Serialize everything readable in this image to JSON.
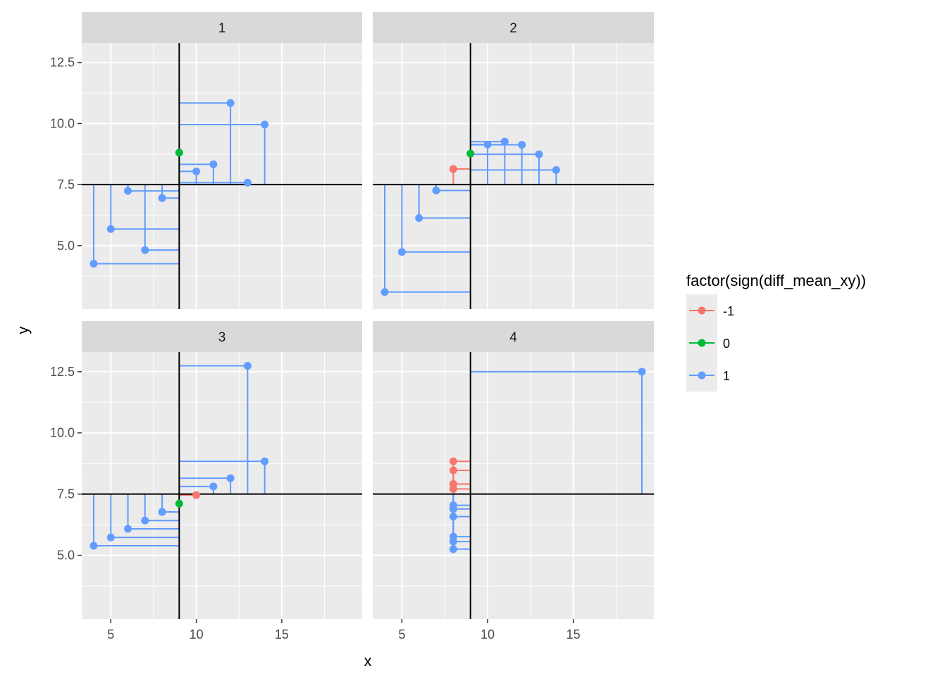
{
  "chart_data": {
    "type": "scatter",
    "facets": [
      "1",
      "2",
      "3",
      "4"
    ],
    "xlabel": "x",
    "ylabel": "y",
    "xlim": [
      3.3,
      19.7
    ],
    "ylim": [
      2.4,
      13.3
    ],
    "x_ticks": [
      5,
      10,
      15
    ],
    "x_tick_labels": [
      "5",
      "10",
      "15"
    ],
    "y_ticks": [
      5.0,
      7.5,
      10.0,
      12.5
    ],
    "y_tick_labels": [
      "5.0",
      "7.5",
      "10.0",
      "12.5"
    ],
    "mean_x": 9,
    "mean_y": 7.5,
    "grid": true,
    "legend": {
      "title": "factor(sign(diff_mean_xy))",
      "position": "right",
      "entries": [
        {
          "label": "-1",
          "color": "#F8766D"
        },
        {
          "label": "0",
          "color": "#00BA38"
        },
        {
          "label": "1",
          "color": "#619CFF"
        }
      ]
    },
    "panels": [
      {
        "facet": "1",
        "points": [
          {
            "x": 10,
            "y": 8.04,
            "group": "1"
          },
          {
            "x": 8,
            "y": 6.95,
            "group": "1"
          },
          {
            "x": 13,
            "y": 7.58,
            "group": "1"
          },
          {
            "x": 9,
            "y": 8.81,
            "group": "0"
          },
          {
            "x": 11,
            "y": 8.33,
            "group": "1"
          },
          {
            "x": 14,
            "y": 9.96,
            "group": "1"
          },
          {
            "x": 6,
            "y": 7.24,
            "group": "1"
          },
          {
            "x": 4,
            "y": 4.26,
            "group": "1"
          },
          {
            "x": 12,
            "y": 10.84,
            "group": "1"
          },
          {
            "x": 7,
            "y": 4.82,
            "group": "1"
          },
          {
            "x": 5,
            "y": 5.68,
            "group": "1"
          }
        ]
      },
      {
        "facet": "2",
        "points": [
          {
            "x": 10,
            "y": 9.14,
            "group": "1"
          },
          {
            "x": 8,
            "y": 8.14,
            "group": "-1"
          },
          {
            "x": 13,
            "y": 8.74,
            "group": "1"
          },
          {
            "x": 9,
            "y": 8.77,
            "group": "0"
          },
          {
            "x": 11,
            "y": 9.26,
            "group": "1"
          },
          {
            "x": 14,
            "y": 8.1,
            "group": "1"
          },
          {
            "x": 6,
            "y": 6.13,
            "group": "1"
          },
          {
            "x": 4,
            "y": 3.1,
            "group": "1"
          },
          {
            "x": 12,
            "y": 9.13,
            "group": "1"
          },
          {
            "x": 7,
            "y": 7.26,
            "group": "1"
          },
          {
            "x": 5,
            "y": 4.74,
            "group": "1"
          }
        ]
      },
      {
        "facet": "3",
        "points": [
          {
            "x": 10,
            "y": 7.46,
            "group": "-1"
          },
          {
            "x": 8,
            "y": 6.77,
            "group": "1"
          },
          {
            "x": 13,
            "y": 12.74,
            "group": "1"
          },
          {
            "x": 9,
            "y": 7.11,
            "group": "0"
          },
          {
            "x": 11,
            "y": 7.81,
            "group": "1"
          },
          {
            "x": 14,
            "y": 8.84,
            "group": "1"
          },
          {
            "x": 6,
            "y": 6.08,
            "group": "1"
          },
          {
            "x": 4,
            "y": 5.39,
            "group": "1"
          },
          {
            "x": 12,
            "y": 8.15,
            "group": "1"
          },
          {
            "x": 7,
            "y": 6.42,
            "group": "1"
          },
          {
            "x": 5,
            "y": 5.73,
            "group": "1"
          }
        ]
      },
      {
        "facet": "4",
        "points": [
          {
            "x": 8,
            "y": 6.58,
            "group": "1"
          },
          {
            "x": 8,
            "y": 5.76,
            "group": "1"
          },
          {
            "x": 8,
            "y": 7.71,
            "group": "-1"
          },
          {
            "x": 8,
            "y": 8.84,
            "group": "-1"
          },
          {
            "x": 8,
            "y": 8.47,
            "group": "-1"
          },
          {
            "x": 8,
            "y": 7.04,
            "group": "1"
          },
          {
            "x": 8,
            "y": 5.25,
            "group": "1"
          },
          {
            "x": 19,
            "y": 12.5,
            "group": "1"
          },
          {
            "x": 8,
            "y": 5.56,
            "group": "1"
          },
          {
            "x": 8,
            "y": 7.91,
            "group": "-1"
          },
          {
            "x": 8,
            "y": 6.89,
            "group": "1"
          }
        ]
      }
    ]
  }
}
